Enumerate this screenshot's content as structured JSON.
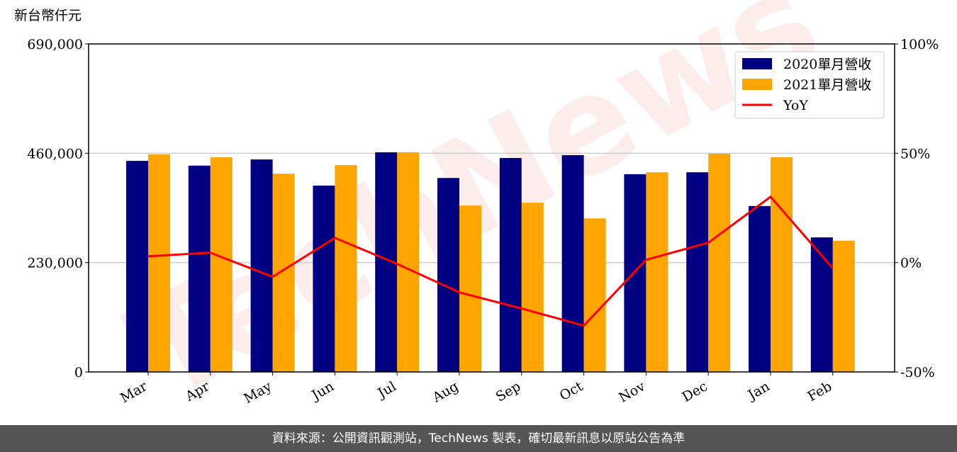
{
  "chart_data": {
    "type": "bar-line",
    "y_label": "新台幣仟元",
    "watermark": "TechNews",
    "categories": [
      "Mar",
      "Apr",
      "May",
      "Jun",
      "Jul",
      "Aug",
      "Sep",
      "Oct",
      "Nov",
      "Dec",
      "Jan",
      "Feb"
    ],
    "series": [
      {
        "name": "2020單月營收",
        "type": "bar",
        "color": "#000080",
        "values": [
          444000,
          434000,
          447000,
          392000,
          462000,
          408000,
          450000,
          456000,
          416000,
          420000,
          349000,
          283000
        ]
      },
      {
        "name": "2021單月營收",
        "type": "bar",
        "color": "#ffa500",
        "values": [
          457500,
          451500,
          417000,
          435000,
          462000,
          350000,
          356000,
          323000,
          420000,
          459000,
          451500,
          276000
        ]
      },
      {
        "name": "YoY",
        "type": "line",
        "axis": "y2",
        "color": "#ff0000",
        "values": [
          2.9,
          4.5,
          -6.5,
          11.3,
          -0.6,
          -13.6,
          -21,
          -28.8,
          1.3,
          9.1,
          30.1,
          -2.6
        ]
      }
    ],
    "ylim": [
      0,
      690000
    ],
    "yticks": [
      0,
      {
        "value": 230000,
        "label": "230,000"
      },
      {
        "value": 460000,
        "label": "460,000"
      },
      {
        "value": 690000,
        "label": "690,000"
      }
    ],
    "y2lim": [
      -50,
      100
    ],
    "y2ticks": [
      {
        "value": -50,
        "label": "-50%"
      },
      {
        "value": 0,
        "label": "0%"
      },
      {
        "value": 50,
        "label": "50%"
      },
      {
        "value": 100,
        "label": "100%"
      }
    ],
    "grid": true,
    "legend": "upper right"
  },
  "footer": "資料來源：公開資訊觀測站，TechNews 製表，確切最新訊息以原站公告為準"
}
